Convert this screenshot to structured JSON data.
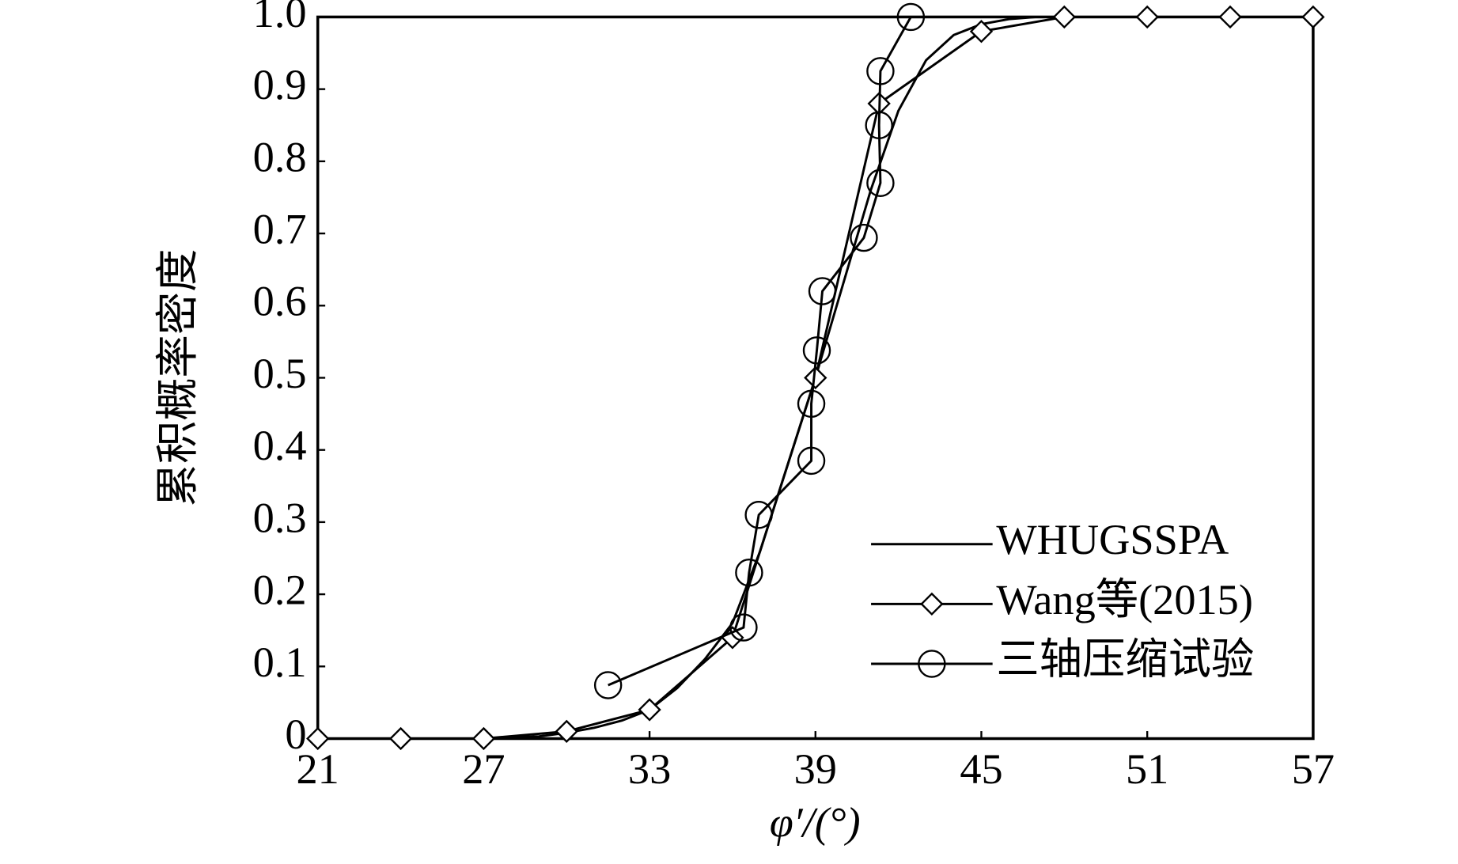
{
  "chart_data": {
    "type": "line",
    "x_label": "φ′/(°)",
    "y_label": "累积概率密度",
    "xlim": [
      21,
      57
    ],
    "xticks": [
      21,
      27,
      33,
      39,
      45,
      51,
      57
    ],
    "ylim": [
      0,
      1
    ],
    "yticks": [
      0,
      0.1,
      0.2,
      0.3,
      0.4,
      0.5,
      0.6,
      0.7,
      0.8,
      0.9,
      {
        "value": 1,
        "label": "1.0"
      }
    ],
    "color": "#000000",
    "series": [
      {
        "name": "WHUGSSPA",
        "marker": "none",
        "x": [
          21,
          27,
          29,
          30,
          31,
          32,
          33,
          34,
          35,
          36,
          37,
          38,
          39,
          40,
          41,
          42,
          43,
          44,
          45,
          46,
          47,
          57
        ],
        "values": [
          0,
          0,
          0.003,
          0.008,
          0.015,
          0.025,
          0.04,
          0.07,
          0.11,
          0.16,
          0.26,
          0.38,
          0.5,
          0.63,
          0.76,
          0.87,
          0.94,
          0.975,
          0.99,
          0.997,
          1,
          1
        ]
      },
      {
        "name": "Wang等(2015)",
        "marker": "diamond",
        "x": [
          21,
          24,
          27,
          30,
          33,
          36,
          39,
          41.3,
          45,
          48,
          51,
          54,
          57
        ],
        "values": [
          0,
          0,
          0,
          0.01,
          0.04,
          0.14,
          0.5,
          0.88,
          0.98,
          1,
          1,
          1,
          1
        ]
      },
      {
        "name": "三轴压缩试验",
        "marker": "circle",
        "x": [
          31.5,
          36.4,
          36.6,
          36.95,
          38.85,
          38.85,
          39.05,
          39.25,
          40.75,
          41.35,
          41.3,
          41.35,
          42.45
        ],
        "values": [
          0.074,
          0.154,
          0.23,
          0.31,
          0.385,
          0.464,
          0.538,
          0.62,
          0.694,
          0.77,
          0.85,
          0.925,
          1
        ]
      }
    ]
  }
}
